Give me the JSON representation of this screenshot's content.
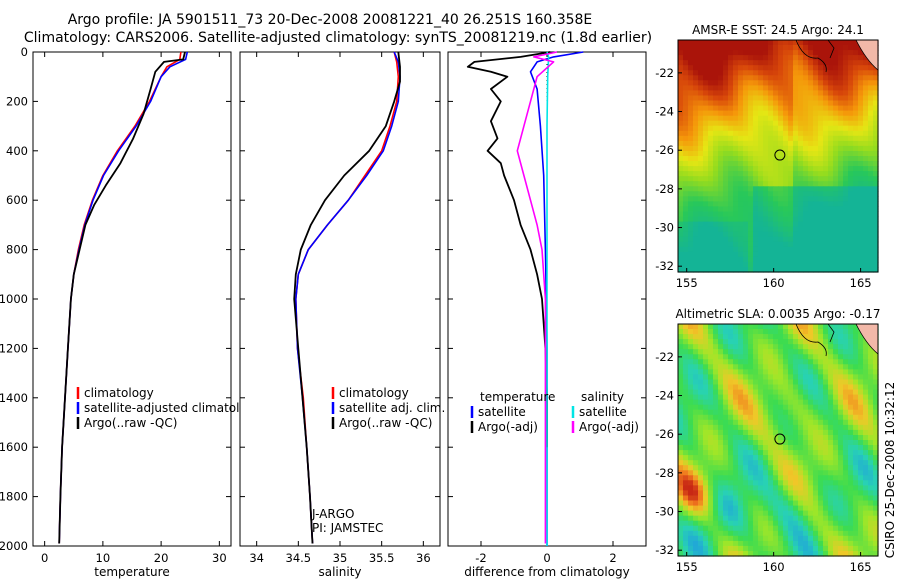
{
  "title_line1": "Argo profile: JA 5901511_73 20-Dec-2008 20081221_40 26.251S 160.358E",
  "title_line2": "Climatology: CARS2006. Satellite-adjusted climatology: synTS_20081219.nc (1.8d earlier)",
  "side_label": "CSIRO 25-Dec-2008 10:32:12",
  "colors": {
    "clim": "#ff0000",
    "sat": "#0000ff",
    "argo": "#000000",
    "sat_sal": "#00e5e5",
    "argo_sal": "#ff00ff"
  },
  "chart_data": [
    {
      "type": "line",
      "xlabel": "temperature",
      "ylim": [
        2000,
        0
      ],
      "xlim": [
        -2,
        32
      ],
      "xticks": [
        0,
        10,
        20,
        30
      ],
      "yticks": [
        0,
        200,
        400,
        600,
        800,
        1000,
        1200,
        1400,
        1600,
        1800,
        2000
      ],
      "legend": {
        "position": "lower-right",
        "entries": [
          "climatology",
          "satellite-adjusted climatolog",
          "Argo(..raw -QC)"
        ]
      },
      "series": [
        {
          "name": "climatology",
          "color_key": "clim",
          "points": [
            [
              23.4,
              0
            ],
            [
              23.2,
              30
            ],
            [
              21,
              60
            ],
            [
              20,
              100
            ],
            [
              18,
              200
            ],
            [
              15.5,
              300
            ],
            [
              12.5,
              400
            ],
            [
              10,
              500
            ],
            [
              8.2,
              600
            ],
            [
              6.8,
              700
            ],
            [
              5.8,
              800
            ],
            [
              5,
              900
            ],
            [
              4.5,
              1000
            ],
            [
              4,
              1200
            ],
            [
              3.5,
              1400
            ],
            [
              3,
              1600
            ],
            [
              2.7,
              1800
            ],
            [
              2.5,
              1990
            ]
          ]
        },
        {
          "name": "satellite-adjusted climatology",
          "color_key": "sat",
          "points": [
            [
              24.5,
              0
            ],
            [
              24.2,
              30
            ],
            [
              21.5,
              60
            ],
            [
              20,
              100
            ],
            [
              18.2,
              200
            ],
            [
              15.7,
              300
            ],
            [
              12.7,
              400
            ],
            [
              10.1,
              500
            ],
            [
              8.3,
              600
            ],
            [
              6.9,
              700
            ],
            [
              5.9,
              800
            ],
            [
              5,
              900
            ],
            [
              4.5,
              1000
            ],
            [
              4,
              1200
            ],
            [
              3.5,
              1400
            ],
            [
              3,
              1600
            ],
            [
              2.7,
              1800
            ],
            [
              2.5,
              1990
            ]
          ]
        },
        {
          "name": "Argo",
          "color_key": "argo",
          "points": [
            [
              24.1,
              0
            ],
            [
              23.8,
              30
            ],
            [
              20.5,
              40
            ],
            [
              19,
              80
            ],
            [
              18.2,
              150
            ],
            [
              17,
              250
            ],
            [
              15.2,
              350
            ],
            [
              13,
              450
            ],
            [
              10.5,
              540
            ],
            [
              8.5,
              620
            ],
            [
              7,
              700
            ],
            [
              6,
              800
            ],
            [
              5,
              900
            ],
            [
              4.5,
              1000
            ],
            [
              4,
              1200
            ],
            [
              3.5,
              1400
            ],
            [
              3,
              1600
            ],
            [
              2.7,
              1800
            ],
            [
              2.5,
              1990
            ]
          ]
        }
      ]
    },
    {
      "type": "line",
      "xlabel": "salinity",
      "ylim": [
        2000,
        0
      ],
      "xlim": [
        33.8,
        36.2
      ],
      "xticks": [
        34,
        34.5,
        35,
        35.5,
        36
      ],
      "legend": {
        "position": "lower-right",
        "entries": [
          "climatology",
          "satellite adj. clim.",
          "Argo(..raw -QC)"
        ]
      },
      "annotation": [
        "J-ARGO",
        "PI: JAMSTEC"
      ],
      "series": [
        {
          "name": "climatology",
          "color_key": "clim",
          "points": [
            [
              35.65,
              0
            ],
            [
              35.68,
              40
            ],
            [
              35.7,
              100
            ],
            [
              35.68,
              200
            ],
            [
              35.6,
              300
            ],
            [
              35.5,
              400
            ],
            [
              35.3,
              500
            ],
            [
              35.1,
              600
            ],
            [
              34.85,
              700
            ],
            [
              34.62,
              800
            ],
            [
              34.5,
              900
            ],
            [
              34.47,
              1000
            ],
            [
              34.49,
              1200
            ],
            [
              34.56,
              1400
            ],
            [
              34.6,
              1600
            ],
            [
              34.64,
              1800
            ],
            [
              34.67,
              1990
            ]
          ]
        },
        {
          "name": "satellite adjusted climatology",
          "color_key": "sat",
          "points": [
            [
              35.65,
              0
            ],
            [
              35.7,
              40
            ],
            [
              35.72,
              100
            ],
            [
              35.7,
              200
            ],
            [
              35.62,
              300
            ],
            [
              35.52,
              400
            ],
            [
              35.32,
              500
            ],
            [
              35.1,
              600
            ],
            [
              34.85,
              700
            ],
            [
              34.62,
              800
            ],
            [
              34.5,
              900
            ],
            [
              34.47,
              1000
            ],
            [
              34.49,
              1200
            ],
            [
              34.55,
              1400
            ],
            [
              34.6,
              1600
            ],
            [
              34.64,
              1800
            ],
            [
              34.67,
              1990
            ]
          ]
        },
        {
          "name": "Argo",
          "color_key": "argo",
          "points": [
            [
              35.7,
              0
            ],
            [
              35.72,
              60
            ],
            [
              35.72,
              120
            ],
            [
              35.65,
              200
            ],
            [
              35.55,
              300
            ],
            [
              35.35,
              400
            ],
            [
              35.05,
              500
            ],
            [
              34.82,
              600
            ],
            [
              34.65,
              700
            ],
            [
              34.53,
              800
            ],
            [
              34.47,
              900
            ],
            [
              34.45,
              1000
            ],
            [
              34.5,
              1200
            ],
            [
              34.55,
              1400
            ],
            [
              34.6,
              1600
            ],
            [
              34.64,
              1800
            ],
            [
              34.67,
              1990
            ]
          ]
        }
      ]
    },
    {
      "type": "line",
      "xlabel": "difference from climatology",
      "ylim": [
        2000,
        0
      ],
      "xlim": [
        -3,
        3
      ],
      "xticks": [
        -2,
        0,
        2
      ],
      "legend": {
        "position": "lower",
        "entries": [
          "temperature",
          "satellite",
          "Argo(-adj)",
          "salinity",
          "satellite",
          "Argo(-adj)"
        ]
      },
      "series": [
        {
          "name": "temperature satellite",
          "color_key": "sat",
          "points": [
            [
              1.1,
              0
            ],
            [
              0.2,
              20
            ],
            [
              -0.3,
              40
            ],
            [
              -0.5,
              80
            ],
            [
              -0.3,
              150
            ],
            [
              -0.2,
              300
            ],
            [
              -0.1,
              500
            ],
            [
              -0.05,
              800
            ],
            [
              -0.02,
              1000
            ],
            [
              0,
              1200
            ],
            [
              0,
              1500
            ],
            [
              0,
              2000
            ]
          ]
        },
        {
          "name": "temperature Argo(-adj)",
          "color_key": "argo",
          "points": [
            [
              0.1,
              0
            ],
            [
              -0.8,
              20
            ],
            [
              -2.2,
              40
            ],
            [
              -2.4,
              60
            ],
            [
              -1.7,
              80
            ],
            [
              -1.2,
              100
            ],
            [
              -1.7,
              150
            ],
            [
              -1.4,
              200
            ],
            [
              -1.7,
              280
            ],
            [
              -1.5,
              350
            ],
            [
              -1.8,
              400
            ],
            [
              -1.4,
              450
            ],
            [
              -1.3,
              500
            ],
            [
              -1,
              600
            ],
            [
              -0.8,
              700
            ],
            [
              -0.5,
              800
            ],
            [
              -0.3,
              900
            ],
            [
              -0.15,
              1000
            ],
            [
              -0.05,
              1200
            ],
            [
              0,
              1400
            ],
            [
              0,
              1600
            ]
          ]
        },
        {
          "name": "salinity satellite",
          "color_key": "sat_sal",
          "points": [
            [
              0,
              0
            ],
            [
              0.05,
              20
            ],
            [
              0.02,
              100
            ],
            [
              0,
              300
            ],
            [
              0,
              1000
            ],
            [
              0,
              2000
            ]
          ]
        },
        {
          "name": "salinity Argo(-adj)",
          "color_key": "argo_sal",
          "points": [
            [
              0.3,
              0
            ],
            [
              -0.4,
              20
            ],
            [
              0.2,
              40
            ],
            [
              -0.3,
              100
            ],
            [
              -0.5,
              200
            ],
            [
              -0.7,
              300
            ],
            [
              -0.9,
              400
            ],
            [
              -0.7,
              500
            ],
            [
              -0.5,
              600
            ],
            [
              -0.3,
              700
            ],
            [
              -0.15,
              800
            ],
            [
              -0.1,
              900
            ],
            [
              -0.05,
              1000
            ],
            [
              -0.05,
              1400
            ],
            [
              -0.05,
              1800
            ],
            [
              -0.05,
              1990
            ]
          ]
        }
      ]
    },
    {
      "type": "heatmap",
      "title": "AMSR-E SST: 24.5 Argo: 24.1",
      "xlim": [
        154.5,
        166
      ],
      "ylim": [
        -32.3,
        -20.3
      ],
      "xticks": [
        155,
        160,
        165
      ],
      "yticks": [
        -22,
        -24,
        -26,
        -28,
        -30,
        -32
      ],
      "marker": [
        160.358,
        -26.251
      ]
    },
    {
      "type": "heatmap",
      "title": "Altimetric SLA: 0.0035 Argo: -0.17",
      "xlim": [
        154.5,
        166
      ],
      "ylim": [
        -32.3,
        -20.3
      ],
      "xticks": [
        155,
        160,
        165
      ],
      "yticks": [
        -22,
        -24,
        -26,
        -28,
        -30,
        -32
      ],
      "marker": [
        160.358,
        -26.251
      ]
    }
  ]
}
